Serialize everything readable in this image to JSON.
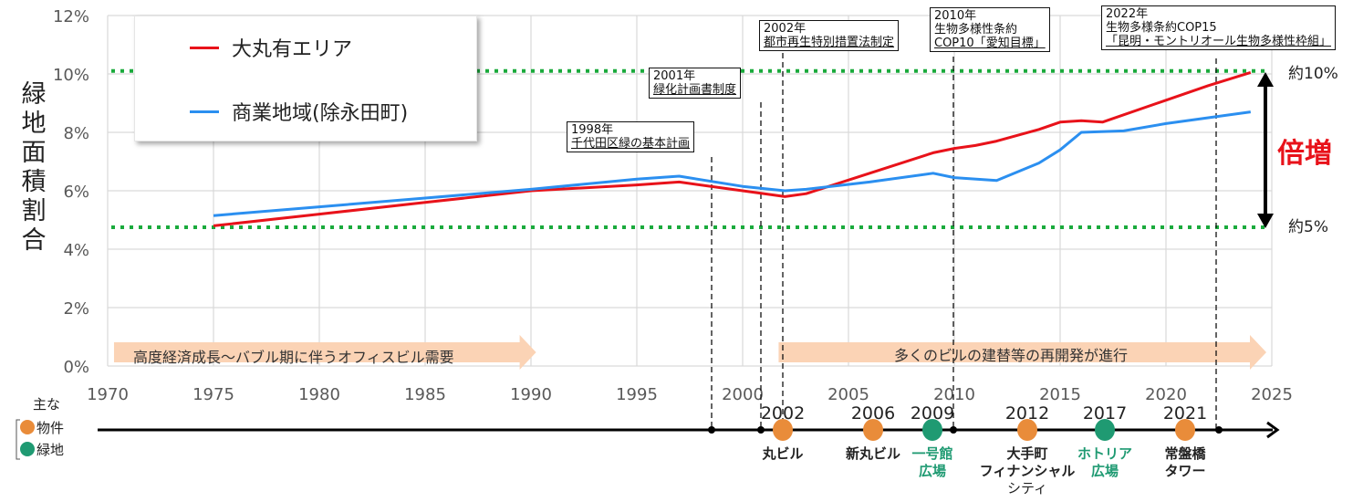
{
  "chart_data": {
    "type": "line",
    "title": "",
    "xlabel": "",
    "ylabel": "緑地面積割合",
    "xlim": [
      1970,
      2025
    ],
    "ylim": [
      0,
      12
    ],
    "x_ticks": [
      "1970",
      "1975",
      "1980",
      "1985",
      "1990",
      "1995",
      "2000",
      "2005",
      "2010",
      "2015",
      "2020",
      "2025"
    ],
    "y_ticks": [
      "0%",
      "2%",
      "4%",
      "6%",
      "8%",
      "10%",
      "12%"
    ],
    "grid": true,
    "legend_position": "top-left",
    "series": [
      {
        "name": "大丸有エリア",
        "color": "#e8121a",
        "x": [
          1975,
          1980,
          1985,
          1990,
          1995,
          1997,
          2000,
          2002,
          2003,
          2006,
          2009,
          2010,
          2011,
          2012,
          2014,
          2015,
          2016,
          2017,
          2020,
          2022,
          2024
        ],
        "values": [
          4.8,
          5.2,
          5.6,
          6.0,
          6.2,
          6.3,
          6.0,
          5.8,
          5.9,
          6.6,
          7.3,
          7.45,
          7.55,
          7.7,
          8.1,
          8.35,
          8.4,
          8.35,
          9.1,
          9.6,
          10.05
        ]
      },
      {
        "name": "商業地域(除永田町)",
        "color": "#2b8ff0",
        "x": [
          1975,
          1980,
          1985,
          1990,
          1995,
          1997,
          2000,
          2002,
          2003,
          2006,
          2009,
          2010,
          2012,
          2014,
          2015,
          2016,
          2018,
          2020,
          2022,
          2024
        ],
        "values": [
          5.15,
          5.45,
          5.75,
          6.05,
          6.4,
          6.5,
          6.15,
          6.0,
          6.05,
          6.3,
          6.6,
          6.45,
          6.35,
          6.95,
          7.4,
          8.0,
          8.05,
          8.3,
          8.5,
          8.7
        ]
      }
    ],
    "reference_lines": [
      {
        "y": 10.1,
        "label": "約10%",
        "color": "#1aaa3c",
        "style": "dotted"
      },
      {
        "y": 4.75,
        "label": "約5%",
        "color": "#1aaa3c",
        "style": "dotted"
      }
    ],
    "annotations": [
      {
        "year": 1998,
        "line1": "1998年",
        "line2": "千代田区緑の基本計画"
      },
      {
        "year": 2001,
        "line1": "2001年",
        "line2": "緑化計画書制度"
      },
      {
        "year": 2002,
        "line1": "2002年",
        "line2": "都市再生特別措置法制定"
      },
      {
        "year": 2010,
        "line1": "2010年",
        "line2": "生物多様性条約",
        "line3": "COP10「愛知目標」"
      },
      {
        "year": 2022,
        "line1": "2022年",
        "line2": "生物多様条約COP15",
        "line3": "「昆明・モントリオール生物多様性枠組」"
      }
    ],
    "double_label": "倍増",
    "eras": [
      {
        "from": 1970.3,
        "to": 1990.5,
        "label": "高度経済成長～バブル期に伴うオフィスビル需要"
      },
      {
        "from": 2001.7,
        "to": 2025,
        "label": "多くのビルの建替等の再開発が進行"
      }
    ]
  },
  "legend": {
    "red_label": "大丸有エリア",
    "blue_label": "商業地域(除永田町)"
  },
  "labels": {
    "ylabel": "緑地面積割合",
    "ref_high": "約10%",
    "ref_low": "約5%",
    "double": "倍増",
    "era1": "高度経済成長～バブル期に伴うオフィスビル需要",
    "era2": "多くのビルの建替等の再開発が進行"
  },
  "notes": [
    {
      "l1": "1998年",
      "l2": "千代田区緑の基本計画"
    },
    {
      "l1": "2001年",
      "l2": "緑化計画書制度"
    },
    {
      "l1": "2002年",
      "l2": "都市再生特別措置法制定"
    },
    {
      "l1": "2010年",
      "l2": "生物多様性条約",
      "l3": "COP10「愛知目標」"
    },
    {
      "l1": "2022年",
      "l2": "生物多様条約COP15",
      "l3": "「昆明・モントリオール生物多様性枠組」"
    }
  ],
  "timeline": {
    "key_title": "主な",
    "key_property": "物件",
    "key_green": "緑地",
    "colors": {
      "property": "#e98c3a",
      "green": "#1f9a72"
    },
    "events": [
      {
        "year": "2002",
        "name1": "丸ビル",
        "name2": "",
        "name3": "",
        "type": "property"
      },
      {
        "year": "2006",
        "name1": "新丸ビル",
        "name2": "",
        "name3": "",
        "type": "property"
      },
      {
        "year": "2009",
        "name1": "一号館",
        "name2": "広場",
        "name3": "",
        "type": "green"
      },
      {
        "year": "2012",
        "name1": "大手町",
        "name2": "フィナンシャル",
        "name3": "シティ",
        "type": "property"
      },
      {
        "year": "2017",
        "name1": "ホトリア",
        "name2": "広場",
        "name3": "",
        "type": "green"
      },
      {
        "year": "2021",
        "name1": "常盤橋",
        "name2": "タワー",
        "name3": "",
        "type": "property"
      }
    ]
  }
}
